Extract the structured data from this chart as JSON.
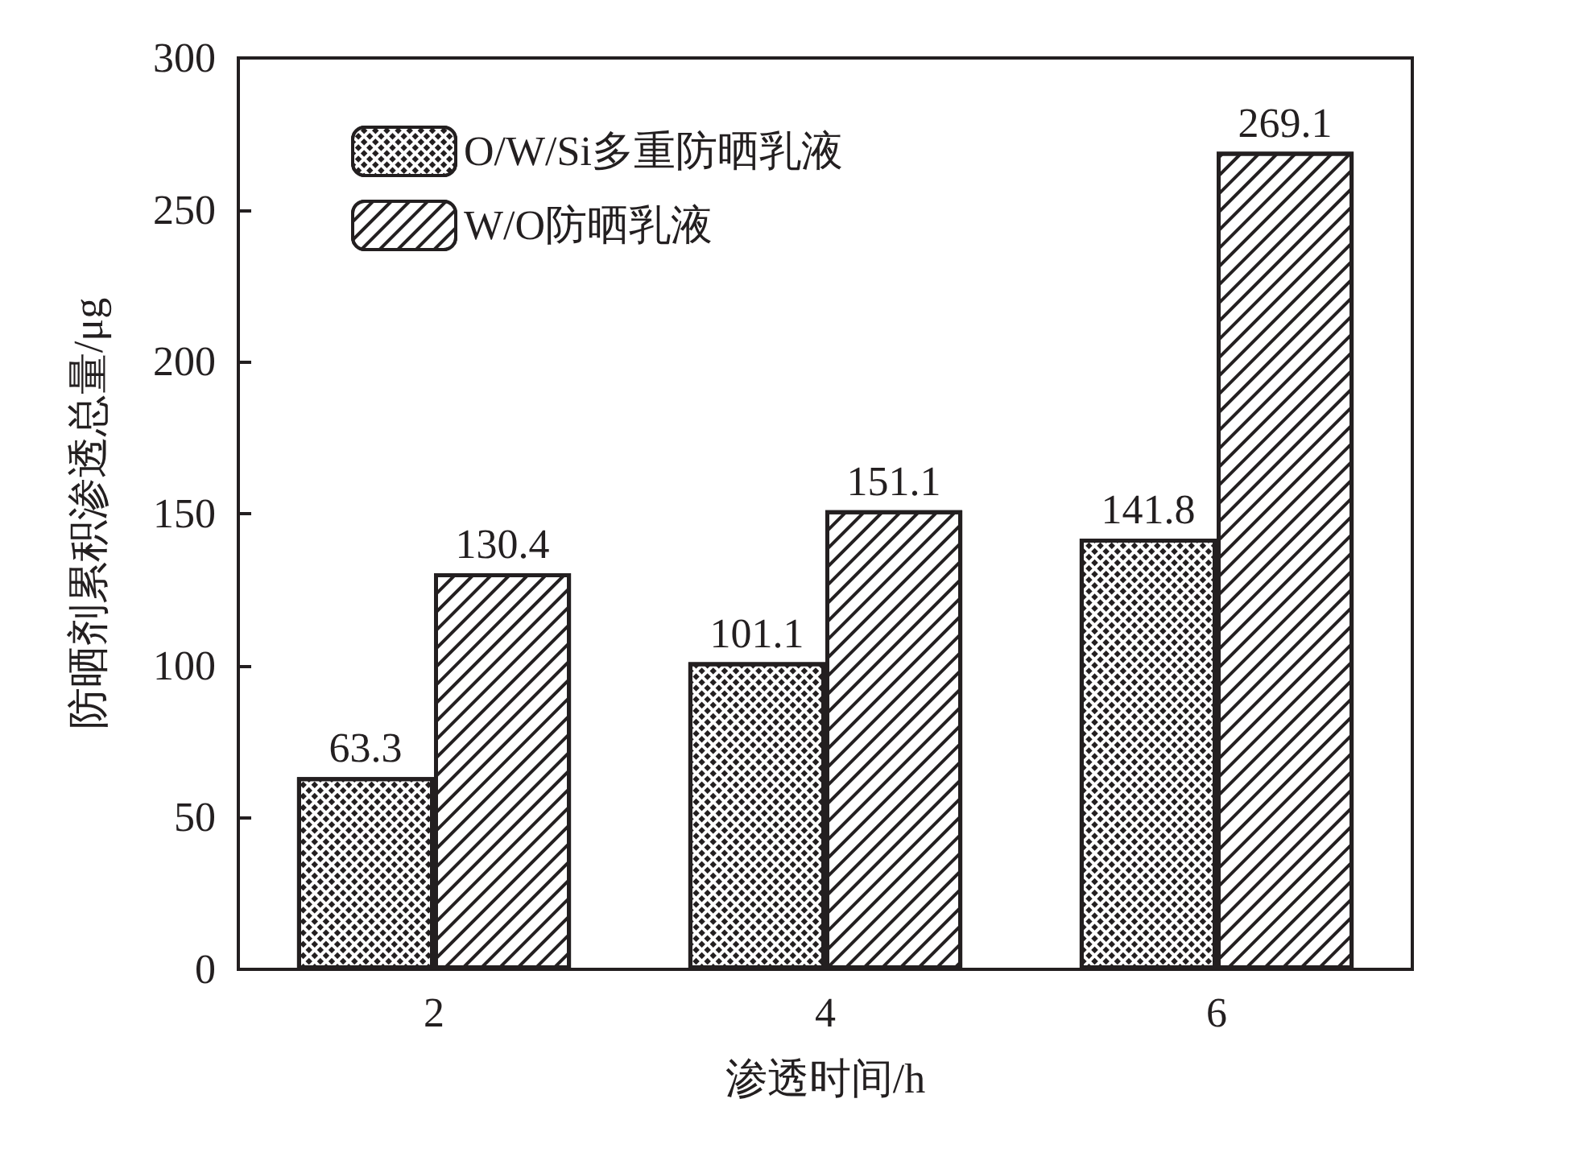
{
  "chart_data": {
    "type": "bar",
    "xlabel": "渗透时间/h",
    "ylabel": "防晒剂累积渗透总量/μg",
    "categories": [
      "2",
      "4",
      "6"
    ],
    "series": [
      {
        "name": "O/W/Si多重防晒乳液",
        "color": "#231f20",
        "values": [
          63.3,
          101.1,
          141.8
        ]
      },
      {
        "name": "W/O防晒乳液",
        "color": "#231f20",
        "values": [
          130.4,
          151.1,
          269.1
        ]
      }
    ],
    "ylim": [
      0,
      300
    ],
    "yticks": [
      0,
      50,
      100,
      150,
      200,
      250,
      300
    ],
    "data_labels": true,
    "legend": "top left",
    "grid": false
  }
}
